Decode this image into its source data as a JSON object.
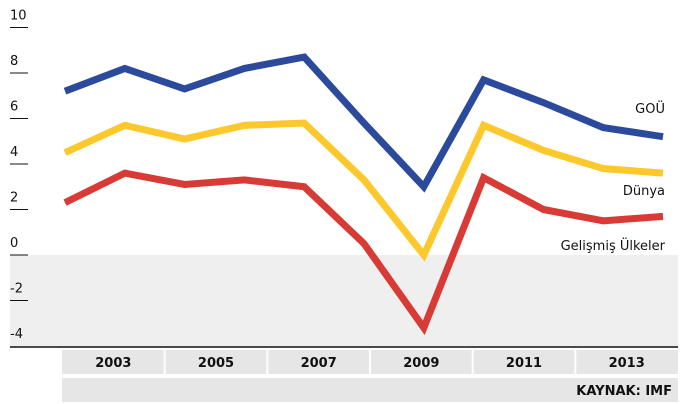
{
  "chart_data": {
    "type": "line",
    "categories": [
      "2003",
      null,
      "2005",
      null,
      "2007",
      null,
      "2009",
      null,
      "2011",
      null,
      "2013"
    ],
    "series": [
      {
        "name": "GOÜ",
        "color": "#2b4a9b",
        "values": [
          7.2,
          8.2,
          7.3,
          8.2,
          8.7,
          5.8,
          3.0,
          7.7,
          6.7,
          5.6,
          5.2
        ]
      },
      {
        "name": "Dünya",
        "color": "#fcc82c",
        "values": [
          4.5,
          5.7,
          5.1,
          5.7,
          5.8,
          3.3,
          0.0,
          5.7,
          4.6,
          3.8,
          3.6
        ]
      },
      {
        "name": "Gelişmiş Ülkeler",
        "color": "#d83a35",
        "values": [
          2.3,
          3.6,
          3.1,
          3.3,
          3.0,
          0.5,
          -3.2,
          3.4,
          2.0,
          1.5,
          1.7
        ]
      }
    ],
    "ylim": [
      -4,
      10
    ],
    "yticks": [
      -4,
      -2,
      0,
      2,
      4,
      6,
      8,
      10
    ],
    "source": "KAYNAK: IMF"
  }
}
